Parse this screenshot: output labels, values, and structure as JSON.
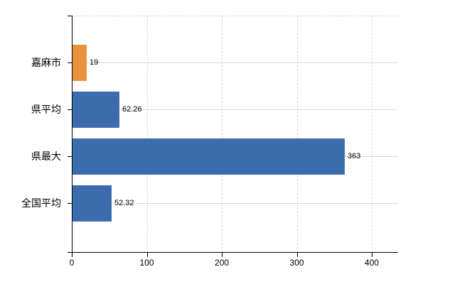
{
  "chart_data": {
    "type": "bar",
    "orientation": "horizontal",
    "title": "",
    "categories": [
      "嘉麻市",
      "県平均",
      "県最大",
      "全国平均"
    ],
    "series": [
      {
        "name": "",
        "values": [
          19,
          62.26,
          363,
          52.32
        ]
      }
    ],
    "value_labels": [
      "19",
      "62.26",
      "363",
      "52.32"
    ],
    "bar_colors": [
      "#e8923e",
      "#3d6cae",
      "#3d6cae",
      "#3d6cae"
    ],
    "x_tick_labels": [
      "0",
      "100",
      "200",
      "300",
      "400"
    ],
    "x_tick_values": [
      0,
      100,
      200,
      300,
      400
    ],
    "xlim": [
      0,
      435
    ],
    "grid": true,
    "legend": false,
    "colors": {
      "bar_highlight": "#e8923e",
      "bar_default": "#3d6cae",
      "gridline": "#d9d9d9",
      "axis": "#000000",
      "text": "#000000",
      "background": "#ffffff"
    }
  }
}
